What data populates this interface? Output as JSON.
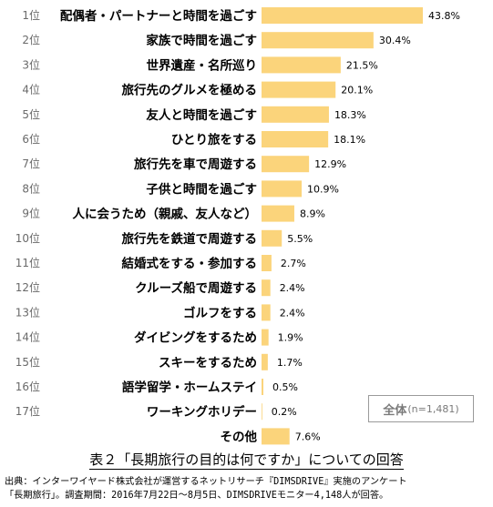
{
  "chart_data": {
    "type": "bar",
    "orientation": "horizontal",
    "ranks": [
      "1位",
      "2位",
      "3位",
      "4位",
      "5位",
      "6位",
      "7位",
      "8位",
      "9位",
      "10位",
      "11位",
      "12位",
      "13位",
      "14位",
      "15位",
      "16位",
      "17位",
      ""
    ],
    "categories": [
      "配偶者・パートナーと時間を過ごす",
      "家族で時間を過ごす",
      "世界遺産・名所巡り",
      "旅行先のグルメを極める",
      "友人と時間を過ごす",
      "ひとり旅をする",
      "旅行先を車で周遊する",
      "子供と時間を過ごす",
      "人に会うため（親戚、友人など）",
      "旅行先を鉄道で周遊する",
      "結婚式をする・参加する",
      "クルーズ船で周遊する",
      "ゴルフをする",
      "ダイビングをするため",
      "スキーをするため",
      "語学留学・ホームステイ",
      "ワーキングホリデー",
      "その他"
    ],
    "values": [
      43.8,
      30.4,
      21.5,
      20.1,
      18.3,
      18.1,
      12.9,
      10.9,
      8.9,
      5.5,
      2.7,
      2.4,
      2.4,
      1.9,
      1.7,
      0.5,
      0.2,
      7.6
    ],
    "value_labels": [
      "43.8%",
      "30.4%",
      "21.5%",
      "20.1%",
      "18.3%",
      "18.1%",
      "12.9%",
      "10.9%",
      "8.9%",
      "5.5%",
      "2.7%",
      "2.4%",
      "2.4%",
      "1.9%",
      "1.7%",
      "0.5%",
      "0.2%",
      "7.6%"
    ],
    "xlim": [
      0,
      55
    ],
    "bar_color": "#fbd47b",
    "grid": false
  },
  "legend": {
    "label": "全体",
    "n": "(n=1,481)"
  },
  "caption": "表２「長期旅行の目的は何ですか」についての回答",
  "source": [
    "出典：インターワイヤード株式会社が運営するネットリサーチ『DIMSDRIVE』実施のアンケート",
    "「長期旅行」。調査期間：2016年7月22日～8月5日、DIMSDRIVEモニター4,148人が回答。"
  ]
}
